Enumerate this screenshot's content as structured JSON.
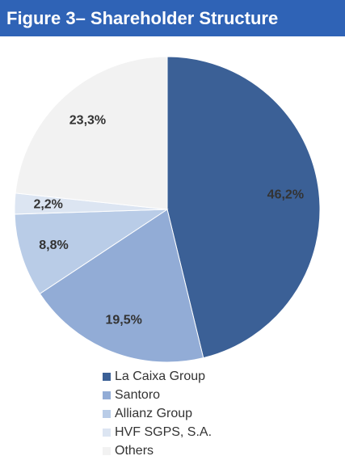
{
  "chart_data": {
    "type": "pie",
    "title": "Figure 3– Shareholder Structure",
    "categories": [
      "La Caixa Group",
      "Santoro",
      "Allianz Group",
      "HVF SGPS, S.A.",
      "Others"
    ],
    "values": [
      46.2,
      19.5,
      8.8,
      2.2,
      23.3
    ],
    "value_labels": [
      "46,2%",
      "19,5%",
      "8,8%",
      "2,2%",
      "23,3%"
    ],
    "colors": [
      "#3b6096",
      "#92acd6",
      "#b9cce7",
      "#dce5f2",
      "#f2f2f2"
    ]
  }
}
